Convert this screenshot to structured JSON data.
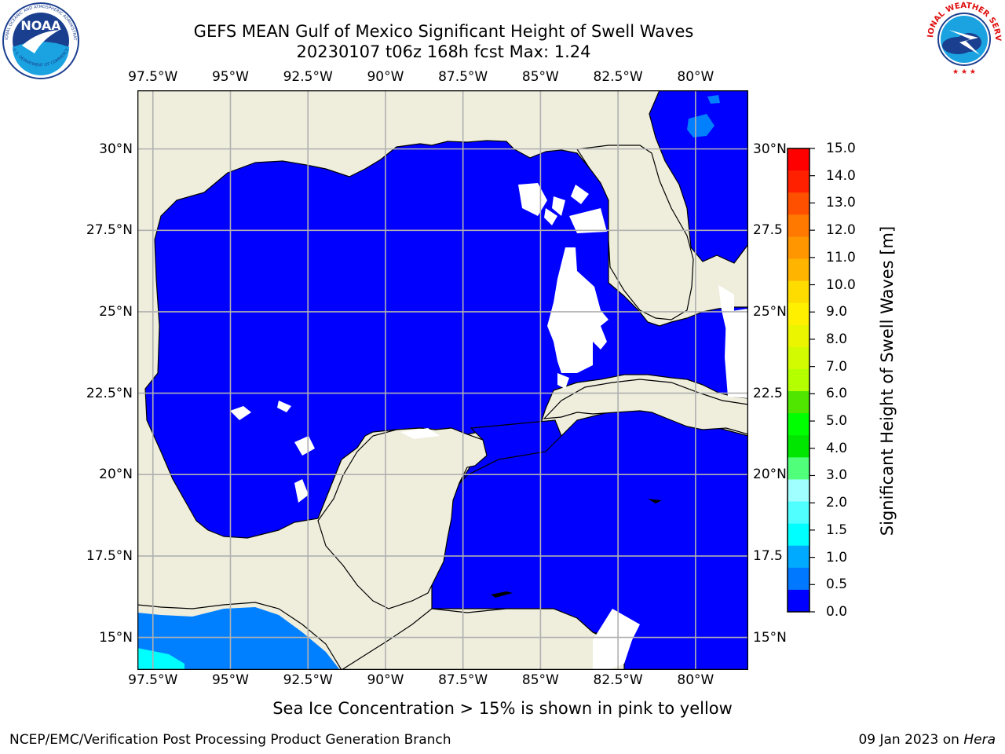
{
  "title": {
    "line1": "GEFS MEAN Gulf of Mexico Significant Height of Swell Waves",
    "line2": "20230107 t06z 168h fcst   Max: 1.24"
  },
  "map": {
    "lon_labels": [
      "97.5°W",
      "95°W",
      "92.5°W",
      "90°W",
      "87.5°W",
      "85°W",
      "82.5°W",
      "80°W"
    ],
    "lat_labels_left": [
      "30°N",
      "27.5°N",
      "25°N",
      "22.5°N",
      "20°N",
      "17.5°N",
      "15°N"
    ],
    "lat_labels_right": [
      "30°N",
      "27.5",
      "25°N",
      "22.5",
      "20°N",
      "17.5",
      "15°N"
    ],
    "extent": {
      "lon_min": -98,
      "lon_max": -78.3,
      "lat_min": 14,
      "lat_max": 31.8
    },
    "colors": {
      "land": "#efeedd",
      "ocean_low": "#0000ff",
      "gridline": "#b0b0b0",
      "nodata": "#ffffff"
    }
  },
  "colorbar": {
    "label": "Significant Height of Swell Waves [m]",
    "ticks": [
      "15.0",
      "14.0",
      "13.0",
      "12.0",
      "11.0",
      "10.0",
      "9.0",
      "8.0",
      "7.0",
      "6.0",
      "5.0",
      "4.0",
      "3.0",
      "2.0",
      "1.5",
      "1.0",
      "0.5",
      "0.0"
    ],
    "colors": [
      "#ff0000",
      "#ff2000",
      "#ff5000",
      "#ff7800",
      "#ff9600",
      "#ffb400",
      "#ffdc00",
      "#fff000",
      "#ebf500",
      "#d2fa00",
      "#b4ff00",
      "#50e600",
      "#00ff00",
      "#00e600",
      "#50ff7a",
      "#a0ffff",
      "#50ffff",
      "#00ffff",
      "#00aaff",
      "#0078ff",
      "#0000ff"
    ]
  },
  "subcaption": "Sea Ice Concentration > 15% is shown in pink to yellow",
  "footer": {
    "left": "NCEP/EMC/Verification Post Processing Product Generation Branch",
    "right_date": "09 Jan 2023 on ",
    "right_host": "Hera"
  },
  "logos": {
    "left_text": "NOAA",
    "left_ring_top": "NATIONAL OCEANIC AND ATMOSPHERIC ADMINISTRATION",
    "left_ring_bottom": "U.S. DEPARTMENT OF COMMERCE",
    "right_ring": "NATIONAL WEATHER SERVICE"
  }
}
